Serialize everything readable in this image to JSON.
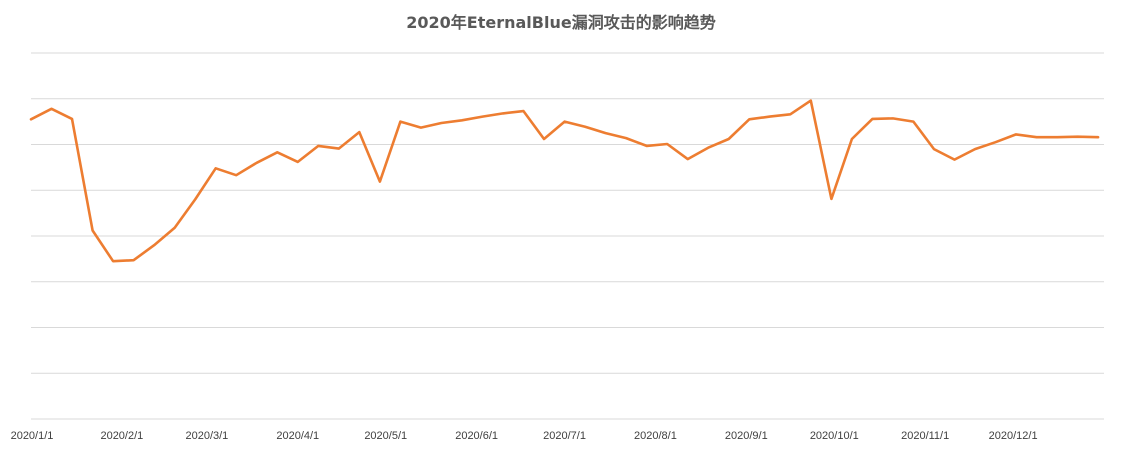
{
  "chart_data": {
    "type": "line",
    "title": "2020年EternalBlue漏洞攻击的影响趋势",
    "xlabel": "",
    "ylabel": "",
    "x_tick_labels": [
      "2020/1/1",
      "2020/2/1",
      "2020/3/1",
      "2020/4/1",
      "2020/5/1",
      "2020/6/1",
      "2020/7/1",
      "2020/8/1",
      "2020/9/1",
      "2020/10/1",
      "2020/11/1",
      "2020/12/1"
    ],
    "x_tick_days": [
      0,
      31,
      60,
      91,
      121,
      152,
      182,
      213,
      244,
      274,
      305,
      335
    ],
    "x_range_days": [
      0,
      366
    ],
    "ylim": [
      0,
      8
    ],
    "grid": true,
    "y_tick_labels_visible": false,
    "line_color": "#ED7D31",
    "series": [
      {
        "name": "",
        "x_days": [
          0,
          7,
          14,
          21,
          28,
          35,
          42,
          49,
          56,
          63,
          70,
          77,
          84,
          91,
          98,
          105,
          112,
          119,
          126,
          133,
          140,
          147,
          154,
          161,
          168,
          175,
          182,
          189,
          196,
          203,
          210,
          217,
          224,
          231,
          238,
          245,
          252,
          259,
          266,
          273,
          280,
          287,
          294,
          301,
          308,
          315,
          322,
          329,
          336,
          343,
          350,
          357,
          364
        ],
        "values": [
          6.55,
          6.78,
          6.56,
          4.12,
          3.45,
          3.47,
          3.8,
          4.18,
          4.8,
          5.48,
          5.33,
          5.6,
          5.83,
          5.62,
          5.97,
          5.91,
          6.27,
          5.19,
          6.5,
          6.37,
          6.47,
          6.53,
          6.61,
          6.68,
          6.73,
          6.12,
          6.5,
          6.39,
          6.25,
          6.14,
          5.97,
          6.01,
          5.68,
          5.93,
          6.12,
          6.55,
          6.61,
          6.66,
          6.96,
          4.81,
          6.12,
          6.56,
          6.57,
          6.5,
          5.9,
          5.67,
          5.9,
          6.05,
          6.22,
          6.16,
          6.16,
          6.17,
          6.16
        ]
      }
    ]
  }
}
